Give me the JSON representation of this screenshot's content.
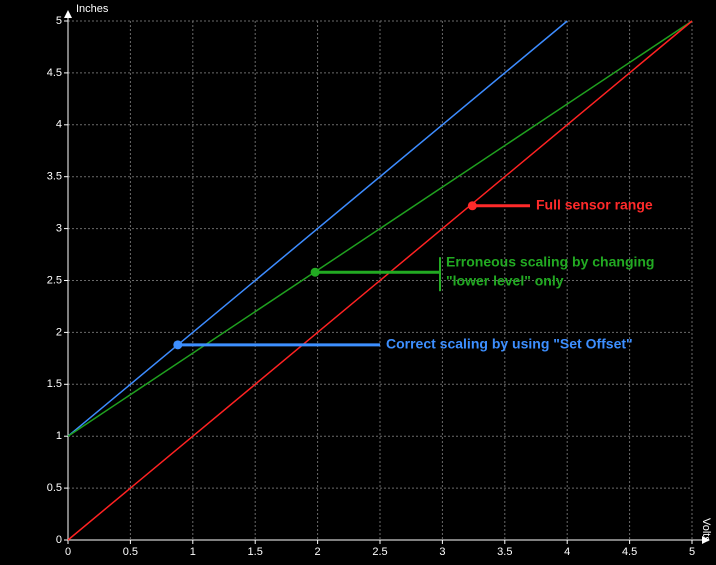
{
  "chart_data": {
    "type": "line",
    "ylabel": "Inches",
    "xlabel": "Volts",
    "xlim": [
      0,
      5
    ],
    "ylim": [
      0,
      5
    ],
    "xticks": [
      0,
      0.5,
      1,
      1.5,
      2,
      2.5,
      3,
      3.5,
      4,
      4.5,
      5
    ],
    "yticks": [
      0,
      0.5,
      1,
      1.5,
      2,
      2.5,
      3,
      3.5,
      4,
      4.5,
      5
    ],
    "grid": true,
    "series": [
      {
        "name": "Correct scaling",
        "color": "#3d8cff",
        "x": [
          0,
          4
        ],
        "values": [
          1,
          5
        ]
      },
      {
        "name": "Erroneous scaling",
        "color": "#1fa01f",
        "x": [
          0,
          5
        ],
        "values": [
          1,
          5
        ]
      },
      {
        "name": "Full sensor range",
        "color": "#ff2222",
        "x": [
          0,
          5
        ],
        "values": [
          0,
          5
        ]
      }
    ],
    "annotations": [
      {
        "x": 3.24,
        "y": 3.22,
        "color": "#ff2a2a",
        "lines": [
          "Full sensor range"
        ]
      },
      {
        "x": 1.98,
        "y": 2.58,
        "color": "#22aa22",
        "lines": [
          "Erroneous scaling by changing",
          "\"lower level\" only"
        ]
      },
      {
        "x": 0.88,
        "y": 1.88,
        "color": "#3d8fff",
        "lines": [
          "Correct scaling by using \"Set Offset\""
        ]
      }
    ]
  }
}
